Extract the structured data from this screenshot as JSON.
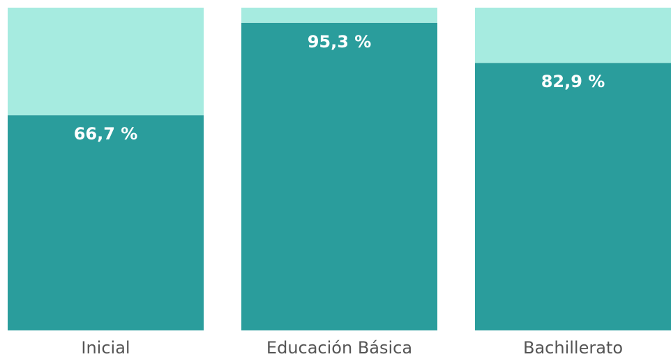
{
  "chart_data": {
    "type": "stacked_bar",
    "categories": [
      "Inicial",
      "Educación Básica",
      "Bachillerato"
    ],
    "series": [
      {
        "color": "#2a9d9c",
        "values": [
          66.7,
          95.3,
          82.9
        ],
        "value_labels": [
          "66,7 %",
          "95,3 %",
          "82,9 %"
        ]
      },
      {
        "color": "#a6ebe0",
        "values": [
          33.3,
          4.7,
          17.1
        ]
      }
    ],
    "ylim": [
      0,
      100
    ]
  }
}
